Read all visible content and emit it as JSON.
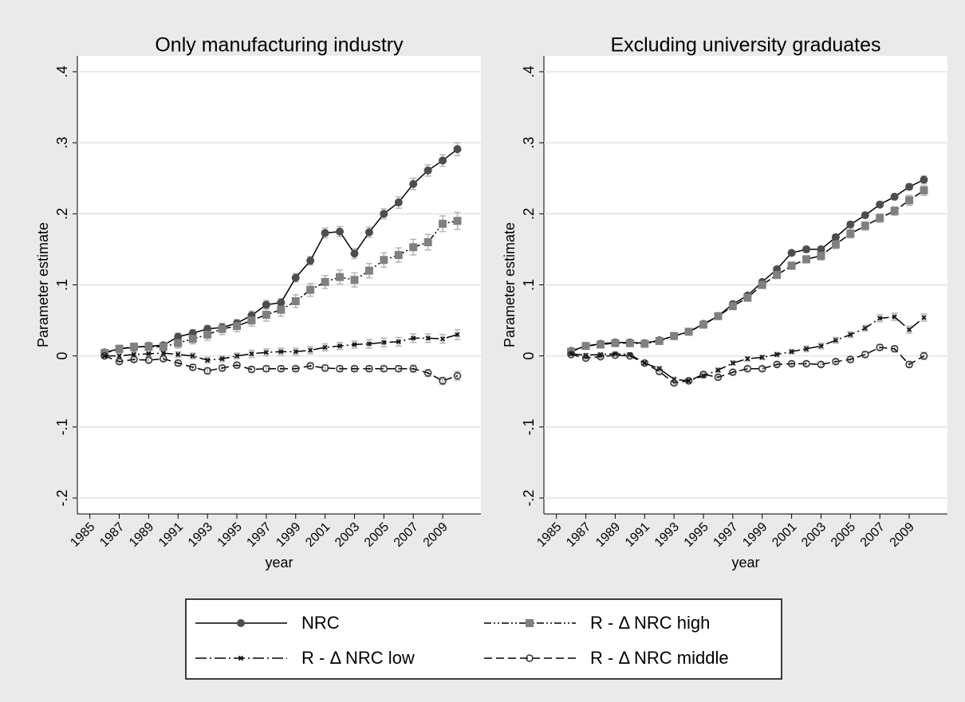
{
  "chart_data": [
    {
      "type": "line",
      "title": "Only manufacturing industry",
      "x_label": "year",
      "y_label": "Parameter estimate",
      "x": [
        1986,
        1987,
        1988,
        1989,
        1990,
        1991,
        1992,
        1993,
        1994,
        1995,
        1996,
        1997,
        1998,
        1999,
        2000,
        2001,
        2002,
        2003,
        2004,
        2005,
        2006,
        2007,
        2008,
        2009,
        2010
      ],
      "xlim": [
        1984.15,
        2011.6
      ],
      "ylim": [
        -0.2224,
        0.4224
      ],
      "xticks": [
        1985,
        1987,
        1989,
        1991,
        1993,
        1995,
        1997,
        1999,
        2001,
        2003,
        2005,
        2007,
        2009
      ],
      "yticks": [
        {
          "value": -0.2,
          "label": "-.2"
        },
        {
          "value": -0.1,
          "label": "-.1"
        },
        0,
        {
          "value": 0.1,
          "label": ".1"
        },
        {
          "value": 0.2,
          "label": ".2"
        },
        {
          "value": 0.3,
          "label": ".3"
        },
        {
          "value": 0.4,
          "label": ".4"
        }
      ],
      "grid": true,
      "series": [
        {
          "name": "NRC",
          "color": "#4d4d4d",
          "marker": "circle",
          "dash": "solid",
          "values": [
            0.005,
            0.01,
            0.012,
            0.014,
            0.015,
            0.027,
            0.032,
            0.038,
            0.04,
            0.046,
            0.057,
            0.072,
            0.075,
            0.11,
            0.134,
            0.173,
            0.175,
            0.144,
            0.174,
            0.2,
            0.216,
            0.242,
            0.261,
            0.275,
            0.291
          ],
          "errors": [
            0.003,
            0.004,
            0.004,
            0.004,
            0.004,
            0.005,
            0.005,
            0.005,
            0.005,
            0.005,
            0.006,
            0.006,
            0.006,
            0.006,
            0.006,
            0.007,
            0.007,
            0.007,
            0.007,
            0.007,
            0.008,
            0.008,
            0.008,
            0.008,
            0.009
          ]
        },
        {
          "name": "R - Δ NRC high",
          "color": "#808080",
          "marker": "square",
          "dash": "dashdotdot",
          "values": [
            0.004,
            0.01,
            0.013,
            0.013,
            0.013,
            0.018,
            0.024,
            0.03,
            0.038,
            0.042,
            0.05,
            0.058,
            0.065,
            0.077,
            0.093,
            0.104,
            0.111,
            0.107,
            0.12,
            0.135,
            0.142,
            0.153,
            0.16,
            0.186,
            0.19
          ],
          "errors": [
            0.004,
            0.005,
            0.005,
            0.006,
            0.006,
            0.007,
            0.007,
            0.008,
            0.008,
            0.008,
            0.008,
            0.009,
            0.009,
            0.009,
            0.009,
            0.009,
            0.01,
            0.01,
            0.01,
            0.01,
            0.01,
            0.011,
            0.011,
            0.011,
            0.012
          ]
        },
        {
          "name": "R - Δ NRC low",
          "color": "#1a1a1a",
          "marker": "x",
          "dash": "dashdot",
          "values": [
            0.0,
            0.0,
            0.002,
            0.003,
            0.004,
            0.002,
            0.0,
            -0.006,
            -0.004,
            0.0,
            0.003,
            0.005,
            0.006,
            0.006,
            0.008,
            0.012,
            0.014,
            0.016,
            0.017,
            0.019,
            0.02,
            0.025,
            0.025,
            0.024,
            0.03
          ],
          "errors": [
            0.003,
            0.004,
            0.004,
            0.004,
            0.004,
            0.004,
            0.004,
            0.004,
            0.004,
            0.004,
            0.005,
            0.005,
            0.005,
            0.005,
            0.005,
            0.005,
            0.005,
            0.005,
            0.006,
            0.006,
            0.006,
            0.006,
            0.006,
            0.006,
            0.007
          ]
        },
        {
          "name": "R - Δ NRC middle",
          "color": "#333333",
          "marker": "hollow",
          "dash": "dash",
          "values": [
            0.0,
            -0.008,
            -0.005,
            -0.006,
            -0.004,
            -0.01,
            -0.016,
            -0.021,
            -0.017,
            -0.013,
            -0.019,
            -0.018,
            -0.018,
            -0.018,
            -0.014,
            -0.017,
            -0.018,
            -0.018,
            -0.018,
            -0.018,
            -0.018,
            -0.018,
            -0.024,
            -0.035,
            -0.028
          ],
          "errors": [
            0.003,
            0.003,
            0.003,
            0.003,
            0.003,
            0.004,
            0.004,
            0.004,
            0.004,
            0.004,
            0.004,
            0.004,
            0.004,
            0.004,
            0.004,
            0.004,
            0.004,
            0.004,
            0.004,
            0.004,
            0.004,
            0.005,
            0.005,
            0.005,
            0.006
          ]
        }
      ]
    },
    {
      "type": "line",
      "title": "Excluding university graduates",
      "x_label": "year",
      "y_label": "Parameter estimate",
      "x": [
        1986,
        1987,
        1988,
        1989,
        1990,
        1991,
        1992,
        1993,
        1994,
        1995,
        1996,
        1997,
        1998,
        1999,
        2000,
        2001,
        2002,
        2003,
        2004,
        2005,
        2006,
        2007,
        2008,
        2009,
        2010
      ],
      "xlim": [
        1984.15,
        2011.6
      ],
      "ylim": [
        -0.2224,
        0.4224
      ],
      "xticks": [
        1985,
        1987,
        1989,
        1991,
        1993,
        1995,
        1997,
        1999,
        2001,
        2003,
        2005,
        2007,
        2009
      ],
      "yticks": [
        {
          "value": -0.2,
          "label": "-.2"
        },
        {
          "value": -0.1,
          "label": "-.1"
        },
        0,
        {
          "value": 0.1,
          "label": ".1"
        },
        {
          "value": 0.2,
          "label": ".2"
        },
        {
          "value": 0.3,
          "label": ".3"
        },
        {
          "value": 0.4,
          "label": ".4"
        }
      ],
      "grid": true,
      "series": [
        {
          "name": "NRC",
          "color": "#4d4d4d",
          "marker": "circle",
          "dash": "solid",
          "values": [
            0.007,
            0.014,
            0.017,
            0.019,
            0.019,
            0.018,
            0.022,
            0.028,
            0.034,
            0.045,
            0.056,
            0.073,
            0.085,
            0.104,
            0.122,
            0.145,
            0.15,
            0.15,
            0.167,
            0.185,
            0.198,
            0.213,
            0.224,
            0.238,
            0.248
          ],
          "errors": [
            0.002,
            0.002,
            0.002,
            0.002,
            0.002,
            0.002,
            0.002,
            0.002,
            0.003,
            0.003,
            0.003,
            0.003,
            0.003,
            0.003,
            0.003,
            0.003,
            0.004,
            0.004,
            0.004,
            0.004,
            0.004,
            0.004,
            0.004,
            0.004,
            0.005
          ]
        },
        {
          "name": "R - Δ NRC high",
          "color": "#808080",
          "marker": "square",
          "dash": "dashdotdot",
          "values": [
            0.006,
            0.014,
            0.016,
            0.018,
            0.018,
            0.017,
            0.021,
            0.028,
            0.034,
            0.044,
            0.056,
            0.07,
            0.082,
            0.1,
            0.114,
            0.127,
            0.136,
            0.141,
            0.157,
            0.172,
            0.183,
            0.194,
            0.204,
            0.219,
            0.233
          ],
          "errors": [
            0.003,
            0.003,
            0.003,
            0.003,
            0.003,
            0.003,
            0.003,
            0.004,
            0.004,
            0.004,
            0.004,
            0.004,
            0.005,
            0.005,
            0.005,
            0.005,
            0.005,
            0.006,
            0.006,
            0.006,
            0.006,
            0.006,
            0.006,
            0.007,
            0.007
          ]
        },
        {
          "name": "R - Δ NRC low",
          "color": "#1a1a1a",
          "marker": "x",
          "dash": "dashdot",
          "values": [
            0.003,
            0.001,
            0.002,
            0.003,
            0.002,
            -0.01,
            -0.018,
            -0.033,
            -0.035,
            -0.028,
            -0.02,
            -0.01,
            -0.004,
            -0.002,
            0.002,
            0.006,
            0.01,
            0.014,
            0.022,
            0.03,
            0.039,
            0.053,
            0.055,
            0.037,
            0.054
          ],
          "errors": [
            0.002,
            0.002,
            0.002,
            0.002,
            0.002,
            0.003,
            0.003,
            0.003,
            0.003,
            0.003,
            0.003,
            0.003,
            0.003,
            0.003,
            0.003,
            0.003,
            0.004,
            0.004,
            0.004,
            0.004,
            0.004,
            0.005,
            0.005,
            0.005,
            0.005
          ]
        },
        {
          "name": "R - Δ NRC middle",
          "color": "#333333",
          "marker": "hollow",
          "dash": "dash",
          "values": [
            0.002,
            -0.003,
            -0.001,
            0.001,
            0.0,
            -0.01,
            -0.022,
            -0.038,
            -0.035,
            -0.026,
            -0.03,
            -0.023,
            -0.018,
            -0.018,
            -0.012,
            -0.011,
            -0.011,
            -0.012,
            -0.008,
            -0.005,
            0.002,
            0.012,
            0.01,
            -0.012,
            0.0
          ],
          "errors": [
            0.002,
            0.002,
            0.002,
            0.002,
            0.002,
            0.003,
            0.003,
            0.003,
            0.003,
            0.003,
            0.003,
            0.003,
            0.003,
            0.003,
            0.003,
            0.003,
            0.003,
            0.003,
            0.003,
            0.004,
            0.004,
            0.004,
            0.004,
            0.004,
            0.005
          ]
        }
      ]
    }
  ]
}
